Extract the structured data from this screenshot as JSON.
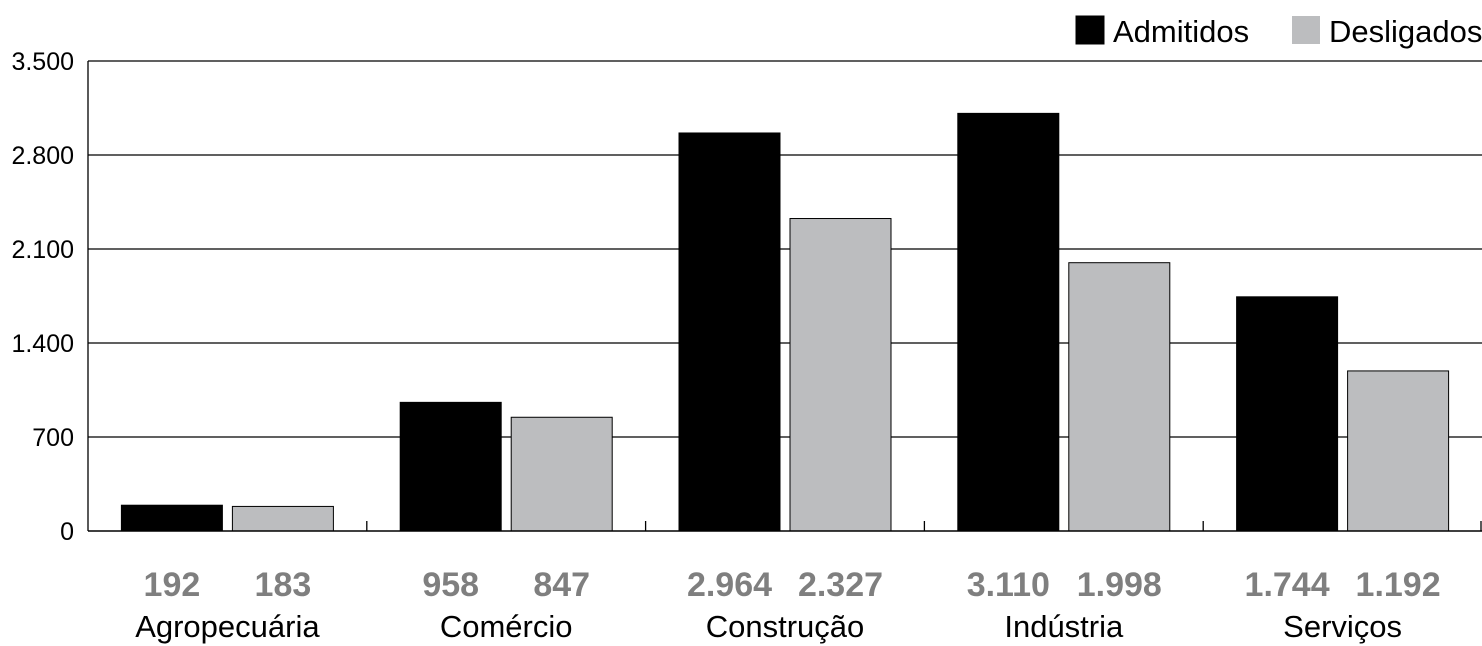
{
  "chart_data": {
    "type": "bar",
    "title": "",
    "xlabel": "",
    "ylabel": "",
    "ylim": [
      0,
      3500
    ],
    "yticks": [
      0,
      700,
      1400,
      2100,
      2800,
      3500
    ],
    "ytick_labels": [
      "0",
      "700",
      "1.400",
      "2.100",
      "2.800",
      "3.500"
    ],
    "grid": true,
    "legend_position": "top-right",
    "categories": [
      "Agropecuária",
      "Comércio",
      "Construção",
      "Indústria",
      "Serviços"
    ],
    "series": [
      {
        "name": "Admitidos",
        "color": "#000000",
        "values": [
          192,
          958,
          2964,
          3110,
          1744
        ],
        "value_labels": [
          "192",
          "958",
          "2.964",
          "3.110",
          "1.744"
        ]
      },
      {
        "name": "Desligados",
        "color": "#bcbdbf",
        "values": [
          183,
          847,
          2327,
          1998,
          1192
        ],
        "value_labels": [
          "183",
          "847",
          "2.327",
          "1.998",
          "1.192"
        ]
      }
    ]
  }
}
